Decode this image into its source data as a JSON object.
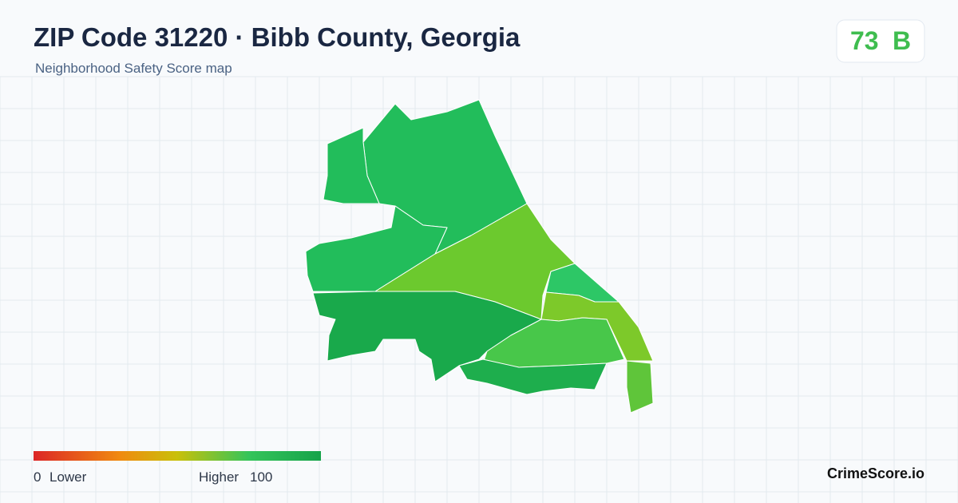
{
  "header": {
    "title": "ZIP Code 31220 · Bibb County, Georgia",
    "subtitle": "Neighborhood Safety Score map"
  },
  "score": {
    "value": 73,
    "grade": "B"
  },
  "legend": {
    "min": 0,
    "min_label": "Lower",
    "max_label": "Higher",
    "max": 100
  },
  "brand": "CrimeScore.io"
}
